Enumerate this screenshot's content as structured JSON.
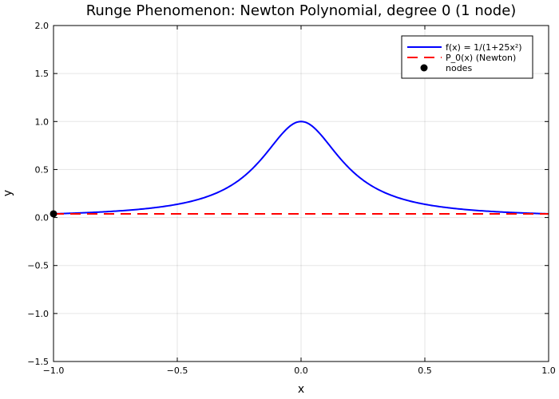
{
  "chart_data": {
    "type": "line",
    "title": "Runge Phenomenon: Newton Polynomial, degree 0  (1 node)",
    "xlabel": "x",
    "ylabel": "y",
    "xlim": [
      -1.0,
      1.0
    ],
    "ylim": [
      -1.5,
      2.0
    ],
    "xticks": [
      -1.0,
      -0.5,
      0.0,
      0.5,
      1.0
    ],
    "xtick_labels": [
      "−1.0",
      "−0.5",
      "0.0",
      "0.5",
      "1.0"
    ],
    "yticks": [
      -1.5,
      -1.0,
      -0.5,
      0.0,
      0.5,
      1.0,
      1.5,
      2.0
    ],
    "ytick_labels": [
      "−1.5",
      "−1.0",
      "−0.5",
      "0.0",
      "0.5",
      "1.0",
      "1.5",
      "2.0"
    ],
    "grid": true,
    "legend_position": "top-right",
    "series": [
      {
        "name": "f(x) = 1/(1+25x²)",
        "kind": "function",
        "formula": "1/(1+25x^2)",
        "color": "#0000ff",
        "style": "solid"
      },
      {
        "name": "P_0(x) (Newton)",
        "kind": "constant",
        "value": 0.0385,
        "color": "#ff0000",
        "style": "dashed"
      },
      {
        "name": "nodes",
        "kind": "scatter",
        "x": [
          -1.0
        ],
        "y": [
          0.0385
        ],
        "color": "#000000"
      }
    ]
  }
}
